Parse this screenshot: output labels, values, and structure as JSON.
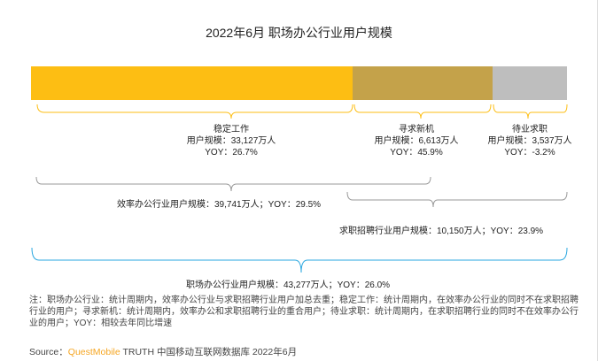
{
  "chart_data": {
    "type": "bar",
    "title": "2022年6月 职场办公行业用户规模",
    "unit": "万人",
    "segments": [
      {
        "name": "稳定工作",
        "value_label": "用户规模：33,127万人",
        "yoy_label": "YOY：26.7%",
        "value": 33127,
        "yoy": 26.7,
        "color": "#FDBE13"
      },
      {
        "name": "寻求新机",
        "value_label": "用户规模：6,613万人",
        "yoy_label": "YOY：45.9%",
        "value": 6613,
        "yoy": 45.9,
        "color": "#C4A24A"
      },
      {
        "name": "待业求职",
        "value_label": "用户规模：3,537万人",
        "yoy_label": "YOY：-3.2%",
        "value": 3537,
        "yoy": -3.2,
        "color": "#BEBEBE"
      }
    ],
    "groups": [
      {
        "label": "效率办公行业用户规模：39,741万人；YOY：29.5%",
        "value": 39741,
        "yoy": 29.5
      },
      {
        "label": "求职招聘行业用户规模：10,150万人；YOY：23.9%",
        "value": 10150,
        "yoy": 23.9
      },
      {
        "label": "职场办公行业用户规模：43,277万人；YOY：26.0%",
        "value": 43277,
        "yoy": 26.0
      }
    ]
  },
  "watermark": "QUEST MOBILE",
  "note": "注：职场办公行业：统计周期内，效率办公行业与求职招聘行业用户加总去重；稳定工作：统计周期内，在效率办公行业的同时不在求职招聘行业的用户；寻求新机：统计周期内，效率办公和求职招聘行业的重合用户；待业求职：统计周期内，在求职招聘行业的同时不在效率办公行业的用户；YOY：相较去年同比增速",
  "source": {
    "prefix": "Source：",
    "brand": "QuestMobile",
    "suffix": " TRUTH 中国移动互联网数据库 2022年6月"
  }
}
